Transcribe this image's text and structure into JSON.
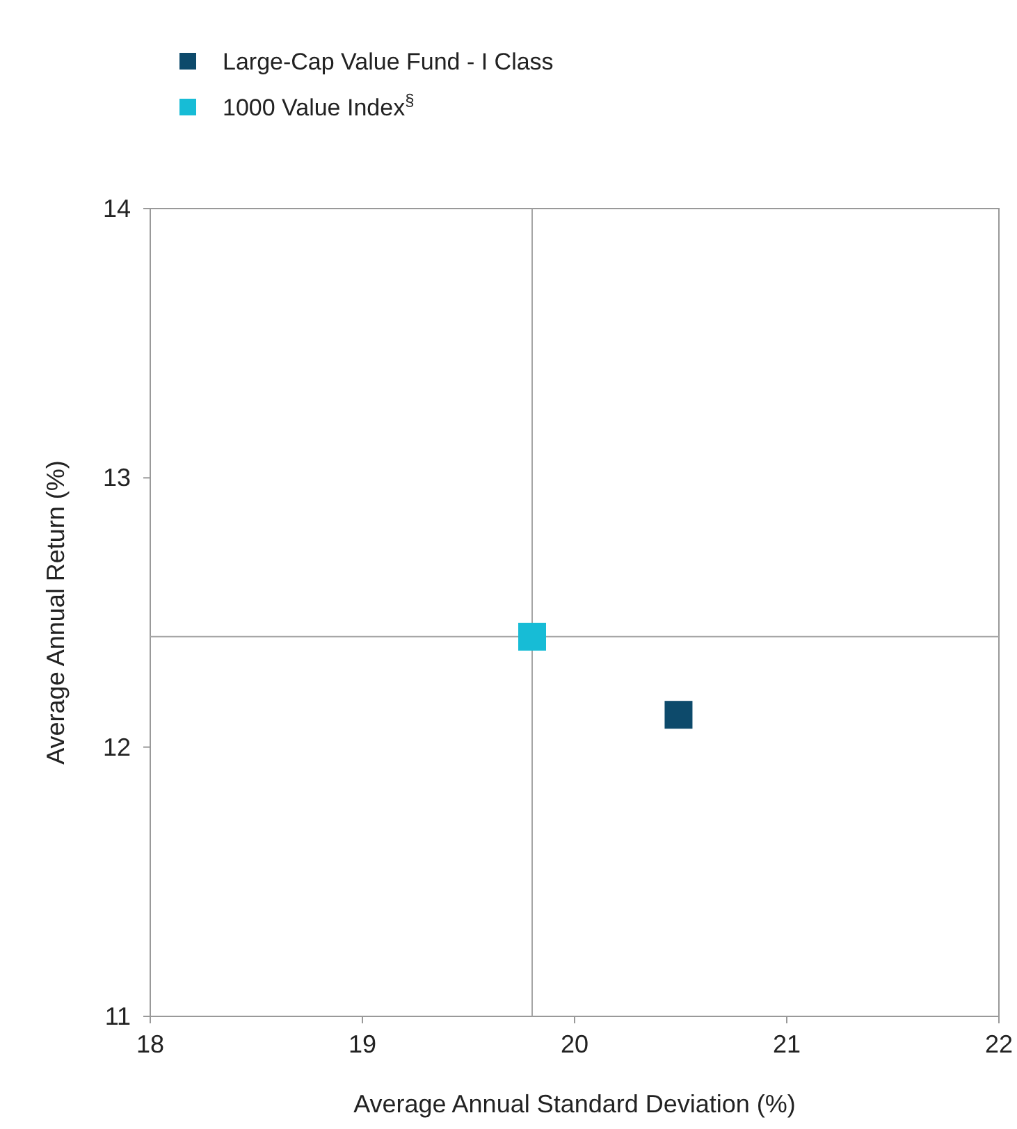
{
  "chart_data": {
    "type": "scatter",
    "xlabel": "Average Annual Standard Deviation (%)",
    "ylabel": "Average Annual Return (%)",
    "series": [
      {
        "name": "Large-Cap Value Fund - I Class",
        "color": "#0d4a6b",
        "x": [
          20.49
        ],
        "values": [
          12.12
        ]
      },
      {
        "name": "1000 Value Index$^{§}$",
        "color": "#17bcd6",
        "x": [
          19.8
        ],
        "values": [
          12.41
        ]
      }
    ],
    "xlim": [
      18,
      22
    ],
    "xticks": [
      18,
      19,
      20,
      21,
      22
    ],
    "ylim": [
      11,
      14
    ],
    "yticks": [
      11,
      12,
      13,
      14
    ],
    "ref_lines": [
      {
        "axis": "x",
        "value": 19.8,
        "color": "#a6a6a6"
      },
      {
        "axis": "y",
        "value": 12.41,
        "color": "#a6a6a6"
      }
    ],
    "marker": "square",
    "legend": "top left",
    "grid": false
  }
}
